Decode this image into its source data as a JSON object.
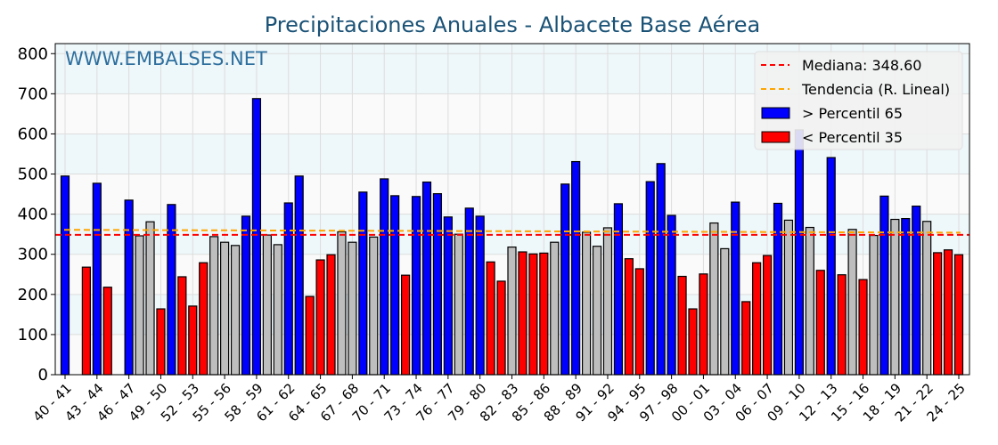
{
  "chart_data": {
    "type": "bar",
    "title": "Precipitaciones Anuales - Albacete Base Aérea",
    "watermark": "WWW.EMBALSES.NET",
    "xlabel": "",
    "ylabel": "",
    "ylim": [
      0,
      825
    ],
    "yticks": [
      0,
      100,
      200,
      300,
      400,
      500,
      600,
      700,
      800
    ],
    "grid": true,
    "legend_position": "top-right",
    "legend": [
      {
        "label": "Mediana: 348.60",
        "kind": "line",
        "color": "#ff0000"
      },
      {
        "label": "Tendencia (R. Lineal)",
        "kind": "line",
        "color": "#ffa500"
      },
      {
        "label": " > Percentil 65",
        "kind": "box",
        "color": "#0000ff"
      },
      {
        "label": "< Percentil 35",
        "kind": "box",
        "color": "#ff0000"
      }
    ],
    "median": 348.6,
    "trend": [
      361,
      354
    ],
    "colors": {
      "high": "#0000ff",
      "low": "#ff0000",
      "mid": "#bebebe"
    },
    "start_year": 1940,
    "values": [
      495,
      0,
      268,
      477,
      218,
      0,
      435,
      346,
      381,
      164,
      424,
      244,
      171,
      279,
      344,
      330,
      322,
      395,
      688,
      348,
      324,
      428,
      495,
      195,
      286,
      299,
      356,
      330,
      455,
      343,
      488,
      446,
      248,
      444,
      480,
      451,
      393,
      350,
      415,
      395,
      281,
      233,
      318,
      306,
      301,
      303,
      330,
      475,
      531,
      355,
      320,
      366,
      426,
      289,
      264,
      481,
      526,
      397,
      245,
      164,
      251,
      378,
      314,
      430,
      182,
      279,
      297,
      427,
      385,
      610,
      367,
      260,
      541,
      249,
      362,
      237,
      347,
      445,
      387,
      389,
      420,
      382,
      304,
      311,
      299
    ]
  }
}
